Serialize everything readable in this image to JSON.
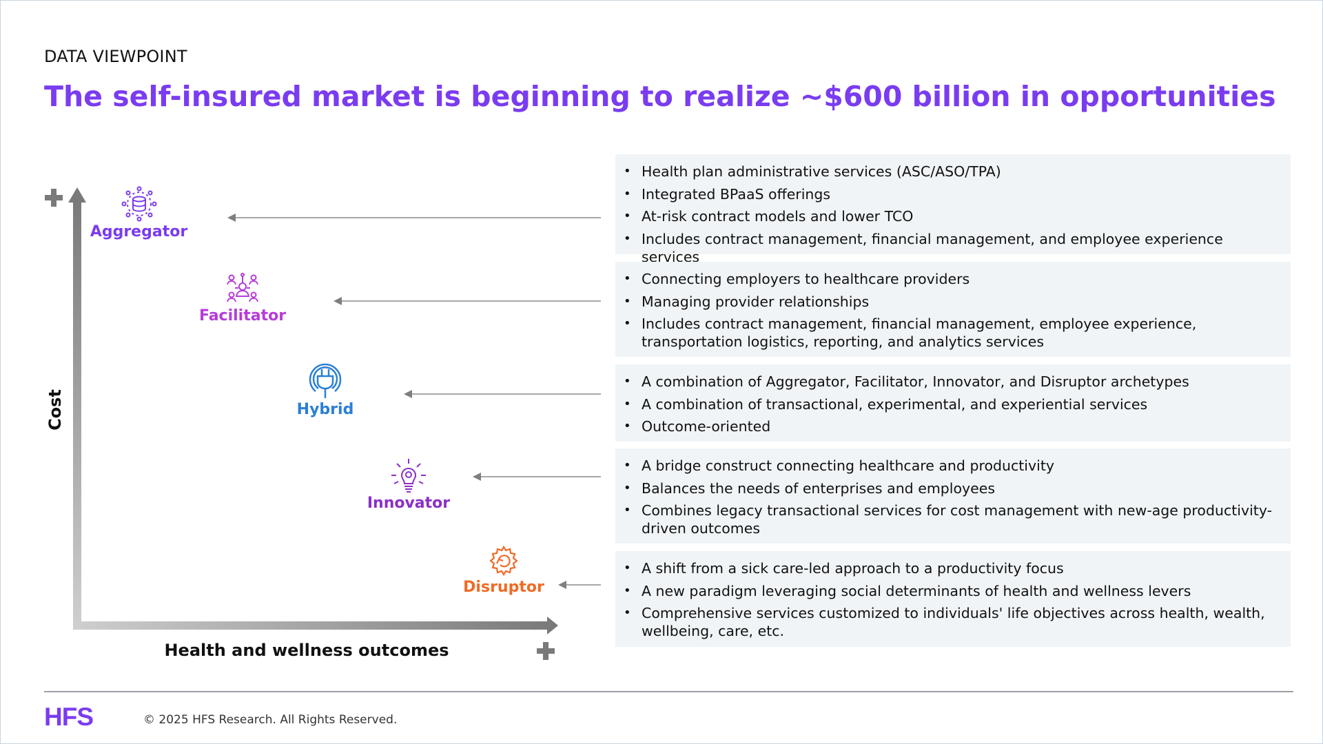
{
  "kicker": "DATA VIEWPOINT",
  "title": "The self-insured market is beginning to realize ~$600 billion in opportunities",
  "axes": {
    "x_label": "Health and wellness outcomes",
    "y_label": "Cost",
    "plus_symbol": "✚"
  },
  "colors": {
    "brand": "#7a3cf0",
    "aggregator": "#7a3cf0",
    "facilitator": "#b63cd8",
    "hybrid": "#2b7fd6",
    "innovator": "#8a2fc8",
    "disruptor": "#f06a24",
    "panel_bg": "#f0f4f7",
    "arrow": "#7f7f7f"
  },
  "archetypes": [
    {
      "name": "Aggregator",
      "icon": "database-network-icon",
      "bullets": [
        "Health plan administrative services (ASC/ASO/TPA)",
        "Integrated BPaaS offerings",
        "At-risk contract models and lower TCO",
        "Includes contract management, financial management, and employee experience services"
      ]
    },
    {
      "name": "Facilitator",
      "icon": "people-network-icon",
      "bullets": [
        "Connecting employers to healthcare providers",
        "Managing provider relationships",
        "Includes contract management, financial management, employee experience, transportation logistics, reporting, and analytics services"
      ]
    },
    {
      "name": "Hybrid",
      "icon": "plug-icon",
      "bullets": [
        "A combination of Aggregator, Facilitator, Innovator, and Disruptor archetypes",
        "A combination of transactional, experimental, and experiential services",
        "Outcome-oriented"
      ]
    },
    {
      "name": "Innovator",
      "icon": "lightbulb-gear-icon",
      "bullets": [
        "A bridge construct connecting healthcare and productivity",
        "Balances the needs of enterprises and employees",
        "Combines legacy transactional services for cost management with new-age productivity-driven outcomes"
      ]
    },
    {
      "name": "Disruptor",
      "icon": "gear-refresh-icon",
      "bullets": [
        "A shift from a sick care-led approach to a productivity focus",
        "A new paradigm leveraging social determinants of health and wellness levers",
        "Comprehensive services customized to individuals' life objectives across health, wealth, wellbeing, care, etc."
      ]
    }
  ],
  "footer": {
    "logo": "HFS",
    "copyright": "© 2025 HFS Research. All Rights Reserved."
  }
}
